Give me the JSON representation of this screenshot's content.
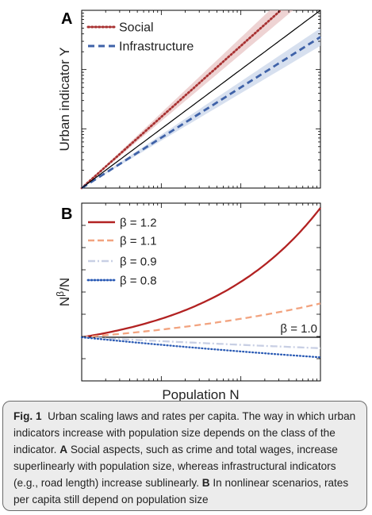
{
  "chart_data": [
    {
      "type": "line",
      "panel_label": "A",
      "xlabel": "",
      "ylabel": "Urban indicator Y",
      "xscale": "log",
      "yscale": "log",
      "grid": false,
      "legend_placement": "top-left",
      "series": [
        {
          "name": "Social",
          "style": "dotted",
          "color": "#a83232",
          "band_color": "#e8c4c4",
          "exponent": 1.2,
          "band": [
            1.13,
            1.27
          ]
        },
        {
          "name": "Infrastructure",
          "style": "dashed",
          "color": "#3f62a8",
          "band_color": "#c9d6ea",
          "exponent": 0.85,
          "band": [
            0.8,
            0.9
          ]
        },
        {
          "name": "",
          "style": "solid",
          "color": "#000000",
          "exponent": 1.0
        }
      ]
    },
    {
      "type": "line",
      "panel_label": "B",
      "xlabel": "Population N",
      "ylabel": "N^β/N",
      "ylabel_base": "N",
      "ylabel_sup": "β",
      "ylabel_tail": "/N",
      "xscale": "log",
      "grid": false,
      "legend_placement": "top-left",
      "reference_line_label": "β = 1.0",
      "series": [
        {
          "name": "β = 1.2",
          "beta": 1.2,
          "style": "solid",
          "color": "#b22222"
        },
        {
          "name": "β = 1.1",
          "beta": 1.1,
          "style": "dashed",
          "color": "#f2a37f"
        },
        {
          "name": "β = 0.9",
          "beta": 0.9,
          "style": "dashdot",
          "color": "#c8cfe4"
        },
        {
          "name": "β = 0.8",
          "beta": 0.8,
          "style": "dotted",
          "color": "#2b5bb5"
        }
      ]
    }
  ],
  "caption": {
    "fig_label": "Fig. 1",
    "title": "Urban scaling laws and rates per capita.",
    "text1": "The way in which urban indicators increase with population size depends on the class of the indicator.",
    "label_a": "A",
    "text_a": "Social aspects, such as crime and total wages, increase superlinearly with population size, whereas infrastructural indicators (e.g., road length) increase sublinearly.",
    "label_b": "B",
    "text_b": "In nonlinear scenarios, rates per capita still depend on population size"
  }
}
